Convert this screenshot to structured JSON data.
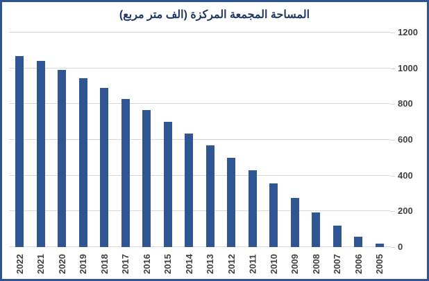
{
  "card": {
    "title": "المساحة المجمعة المركزة (الف متر مربع)"
  },
  "chart_data": {
    "type": "bar",
    "title": "المساحة المجمعة المركزة (الف متر مربع)",
    "categories": [
      "2022",
      "2021",
      "2020",
      "2019",
      "2018",
      "2017",
      "2016",
      "2015",
      "2014",
      "2013",
      "2012",
      "2011",
      "2010",
      "2009",
      "2008",
      "2007",
      "2006",
      "2005"
    ],
    "values": [
      1070,
      1040,
      990,
      945,
      890,
      830,
      765,
      700,
      635,
      570,
      500,
      430,
      355,
      275,
      195,
      120,
      57,
      20
    ],
    "xlabel": "",
    "ylabel": "",
    "ylim": [
      0,
      1200
    ],
    "y_ticks": [
      0,
      200,
      400,
      600,
      800,
      1000,
      1200
    ],
    "y_tick_labels": [
      "0",
      "200",
      "400",
      "600",
      "800",
      "1000",
      "1200"
    ],
    "y_axis_side": "right",
    "x_label_rotation": -90,
    "grid": "horizontal",
    "legend": "none",
    "colors": {
      "bar": "#2f5592",
      "gridline": "#d9d9d9",
      "tick_mark": "#d9d9d9",
      "axis_label": "#404040",
      "title": "#1f3864",
      "border": "#2f5496",
      "background": "#ffffff"
    }
  }
}
